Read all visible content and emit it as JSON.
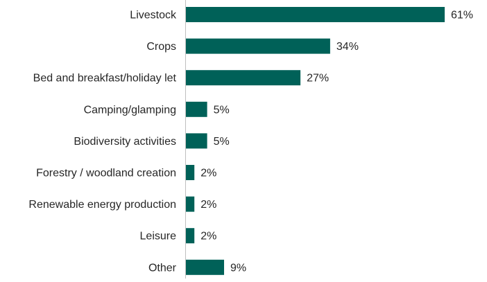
{
  "chart_data": {
    "type": "bar",
    "orientation": "horizontal",
    "categories": [
      "Livestock",
      "Crops",
      "Bed and breakfast/holiday let",
      "Camping/glamping",
      "Biodiversity activities",
      "Forestry / woodland creation",
      "Renewable energy production",
      "Leisure",
      "Other"
    ],
    "values": [
      61,
      34,
      27,
      5,
      5,
      2,
      2,
      2,
      9
    ],
    "value_labels": [
      "61%",
      "34%",
      "27%",
      "5%",
      "5%",
      "2%",
      "2%",
      "2%",
      "9%"
    ],
    "unit": "%",
    "xlim": [
      0,
      61
    ],
    "bar_color": "#006158",
    "axis_color": "#bfbfbf",
    "title": "",
    "xlabel": "",
    "ylabel": "",
    "grid": false,
    "legend": "none"
  }
}
